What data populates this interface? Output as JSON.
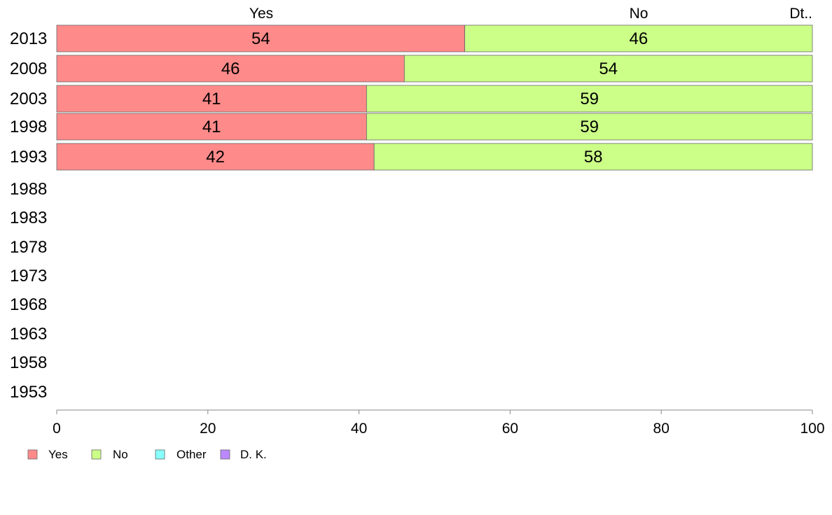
{
  "chart_data": {
    "type": "bar",
    "orientation": "horizontal",
    "stacked": true,
    "categories": [
      "2013",
      "2008",
      "2003",
      "1998",
      "1993",
      "1988",
      "1983",
      "1978",
      "1973",
      "1968",
      "1963",
      "1958",
      "1953"
    ],
    "series": [
      {
        "name": "Yes",
        "color": "#ff8a8a",
        "values": [
          54,
          46,
          41,
          41,
          42,
          null,
          null,
          null,
          null,
          null,
          null,
          null,
          null
        ]
      },
      {
        "name": "No",
        "color": "#ccff88",
        "values": [
          46,
          54,
          59,
          59,
          58,
          null,
          null,
          null,
          null,
          null,
          null,
          null,
          null
        ]
      },
      {
        "name": "Other",
        "color": "#88ffff",
        "values": [
          0,
          0,
          0,
          0,
          0,
          null,
          null,
          null,
          null,
          null,
          null,
          null,
          null
        ]
      },
      {
        "name": "D. K.",
        "color": "#bb88ff",
        "values": [
          0,
          0,
          0,
          0,
          0,
          null,
          null,
          null,
          null,
          null,
          null,
          null,
          null
        ]
      }
    ],
    "column_headers": [
      "Yes",
      "No",
      "Dt.."
    ],
    "xlim": [
      0,
      100
    ],
    "xticks": [
      0,
      20,
      40,
      60,
      80,
      100
    ],
    "grid": false,
    "legend_position": "bottom-left"
  },
  "colors": {
    "axis": "#888888",
    "bar_outline": "#666666"
  }
}
